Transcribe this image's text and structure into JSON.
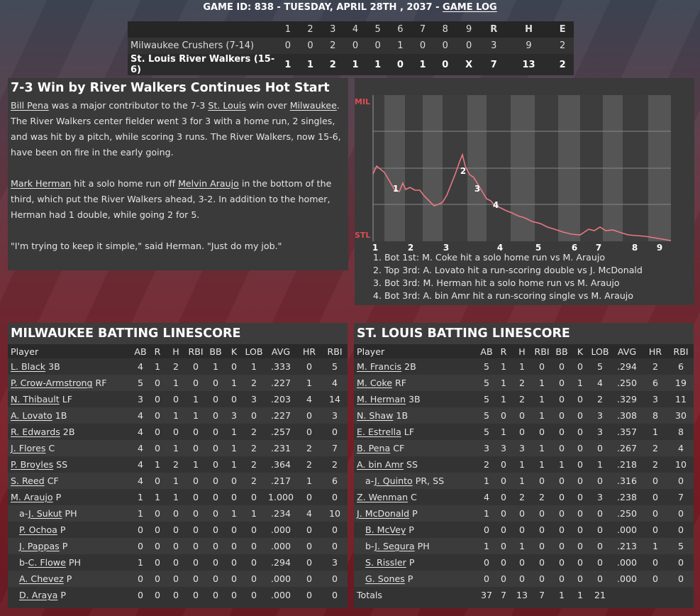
{
  "header": {
    "prefix": "GAME ID: 838 - TUESDAY, APRIL 28TH , 2037 - ",
    "link": "GAME LOG"
  },
  "linescore": {
    "innings": [
      "1",
      "2",
      "3",
      "4",
      "5",
      "6",
      "7",
      "8",
      "9",
      "R",
      "H",
      "E"
    ],
    "teams": [
      {
        "name": "Milwaukee Crushers (7-14)",
        "scores": [
          "0",
          "0",
          "2",
          "0",
          "0",
          "1",
          "0",
          "0",
          "0",
          "3",
          "9",
          "2"
        ]
      },
      {
        "name": "St. Louis River Walkers (15-6)",
        "scores": [
          "1",
          "1",
          "2",
          "1",
          "1",
          "0",
          "1",
          "0",
          "X",
          "7",
          "13",
          "2"
        ]
      }
    ]
  },
  "story": {
    "headline": "7-3 Win by River Walkers Continues Hot Start",
    "p1": {
      "a": "Bill Pena",
      "b": " was a major contributor to the 7-3 ",
      "c": "St. Louis",
      "d": " win over ",
      "e": "Milwaukee",
      "f": ". The River Walkers center fielder went 3 for 3 with a home run, 2 singles, and was hit by a pitch, while scoring 3 runs. The River Walkers, now 15-6, have been on fire in the early going."
    },
    "p2": {
      "a": "Mark Herman",
      "b": " hit a solo home run off ",
      "c": "Melvin Araujo",
      "d": " in the bottom of the third, which put the River Walkers ahead, 3-2. In addition to the homer, Herman had 1 double, while going 2 for 5."
    },
    "p3": "\"I'm trying to keep it simple,\" said Herman. \"Just do my job.\""
  },
  "win_prob": {
    "top_label": "MIL",
    "bottom_label": "STL",
    "innings": [
      "1",
      "2",
      "3",
      "4",
      "5",
      "6",
      "7",
      "8",
      "9"
    ],
    "events": [
      "1",
      "2",
      "3",
      "4"
    ],
    "notes": [
      "1. Bot 1st: M. Coke hit a solo home run vs M. Araujo",
      "2. Top 3rd: A. Lovato hit a run-scoring double vs J. McDonald",
      "3. Bot 3rd: M. Herman hit a solo home run vs M. Araujo",
      "4. Bot 3rd: A. bin Amr hit a run-scoring single vs M. Araujo"
    ]
  },
  "mil": {
    "title": "MILWAUKEE BATTING LINESCORE",
    "cols": [
      "Player",
      "AB",
      "R",
      "H",
      "RBI",
      "BB",
      "K",
      "LOB",
      "AVG",
      "HR",
      "RBI"
    ],
    "rows": [
      {
        "pre": "",
        "name": "L. Black",
        "pos": " 3B",
        "sub": false,
        "s": [
          "4",
          "1",
          "2",
          "0",
          "1",
          "0",
          "1",
          ".333",
          "0",
          "5"
        ]
      },
      {
        "pre": "",
        "name": "P. Crow-Armstrong",
        "pos": " RF",
        "sub": false,
        "s": [
          "5",
          "0",
          "1",
          "0",
          "0",
          "1",
          "2",
          ".227",
          "1",
          "4"
        ]
      },
      {
        "pre": "",
        "name": "N. Thibault",
        "pos": " LF",
        "sub": false,
        "s": [
          "3",
          "0",
          "0",
          "1",
          "0",
          "0",
          "3",
          ".203",
          "4",
          "14"
        ]
      },
      {
        "pre": "",
        "name": "A. Lovato",
        "pos": " 1B",
        "sub": false,
        "s": [
          "4",
          "0",
          "1",
          "1",
          "0",
          "3",
          "0",
          ".227",
          "0",
          "3"
        ]
      },
      {
        "pre": "",
        "name": "R. Edwards",
        "pos": " 2B",
        "sub": false,
        "s": [
          "4",
          "0",
          "0",
          "0",
          "0",
          "1",
          "2",
          ".257",
          "0",
          "0"
        ]
      },
      {
        "pre": "",
        "name": "J. Flores",
        "pos": " C",
        "sub": false,
        "s": [
          "4",
          "0",
          "1",
          "0",
          "0",
          "1",
          "2",
          ".231",
          "2",
          "7"
        ]
      },
      {
        "pre": "",
        "name": "P. Broyles",
        "pos": " SS",
        "sub": false,
        "s": [
          "4",
          "1",
          "2",
          "1",
          "0",
          "1",
          "2",
          ".364",
          "2",
          "2"
        ]
      },
      {
        "pre": "",
        "name": "S. Reed",
        "pos": " CF",
        "sub": false,
        "s": [
          "4",
          "0",
          "1",
          "0",
          "0",
          "0",
          "2",
          ".217",
          "1",
          "6"
        ]
      },
      {
        "pre": "",
        "name": "M. Araujo",
        "pos": " P",
        "sub": false,
        "s": [
          "1",
          "1",
          "1",
          "0",
          "0",
          "0",
          "0",
          "1.000",
          "0",
          "0"
        ]
      },
      {
        "pre": "a-",
        "name": "J. Sukut",
        "pos": " PH",
        "sub": true,
        "s": [
          "1",
          "0",
          "0",
          "0",
          "0",
          "1",
          "1",
          ".234",
          "4",
          "10"
        ]
      },
      {
        "pre": "",
        "name": "P. Ochoa",
        "pos": " P",
        "sub": true,
        "s": [
          "0",
          "0",
          "0",
          "0",
          "0",
          "0",
          "0",
          ".000",
          "0",
          "0"
        ]
      },
      {
        "pre": "",
        "name": "J. Pappas",
        "pos": " P",
        "sub": true,
        "s": [
          "0",
          "0",
          "0",
          "0",
          "0",
          "0",
          "0",
          ".000",
          "0",
          "0"
        ]
      },
      {
        "pre": "b-",
        "name": "C. Flowe",
        "pos": " PH",
        "sub": true,
        "s": [
          "1",
          "0",
          "0",
          "0",
          "0",
          "0",
          "0",
          ".294",
          "0",
          "3"
        ]
      },
      {
        "pre": "",
        "name": "A. Chevez",
        "pos": " P",
        "sub": true,
        "s": [
          "0",
          "0",
          "0",
          "0",
          "0",
          "0",
          "0",
          ".000",
          "0",
          "0"
        ]
      },
      {
        "pre": "",
        "name": "D. Araya",
        "pos": " P",
        "sub": true,
        "s": [
          "0",
          "0",
          "0",
          "0",
          "0",
          "0",
          "0",
          ".000",
          "0",
          "0"
        ]
      }
    ]
  },
  "stl": {
    "title": "ST. LOUIS BATTING LINESCORE",
    "cols": [
      "Player",
      "AB",
      "R",
      "H",
      "RBI",
      "BB",
      "K",
      "LOB",
      "AVG",
      "HR",
      "RBI"
    ],
    "rows": [
      {
        "pre": "",
        "name": "M. Francis",
        "pos": " 2B",
        "sub": false,
        "s": [
          "5",
          "1",
          "1",
          "0",
          "0",
          "0",
          "5",
          ".294",
          "2",
          "6"
        ]
      },
      {
        "pre": "",
        "name": "M. Coke",
        "pos": " RF",
        "sub": false,
        "s": [
          "5",
          "1",
          "2",
          "1",
          "0",
          "1",
          "4",
          ".250",
          "6",
          "19"
        ]
      },
      {
        "pre": "",
        "name": "M. Herman",
        "pos": " 3B",
        "sub": false,
        "s": [
          "5",
          "1",
          "2",
          "1",
          "0",
          "0",
          "2",
          ".329",
          "3",
          "11"
        ]
      },
      {
        "pre": "",
        "name": "N. Shaw",
        "pos": " 1B",
        "sub": false,
        "s": [
          "5",
          "0",
          "0",
          "1",
          "0",
          "0",
          "3",
          ".308",
          "8",
          "30"
        ]
      },
      {
        "pre": "",
        "name": "E. Estrella",
        "pos": " LF",
        "sub": false,
        "s": [
          "5",
          "1",
          "0",
          "0",
          "0",
          "0",
          "3",
          ".357",
          "1",
          "8"
        ]
      },
      {
        "pre": "",
        "name": "B. Pena",
        "pos": " CF",
        "sub": false,
        "s": [
          "3",
          "3",
          "3",
          "1",
          "0",
          "0",
          "0",
          ".267",
          "2",
          "4"
        ]
      },
      {
        "pre": "",
        "name": "A. bin Amr",
        "pos": " SS",
        "sub": false,
        "s": [
          "2",
          "0",
          "1",
          "1",
          "1",
          "0",
          "1",
          ".218",
          "2",
          "10"
        ]
      },
      {
        "pre": "a-",
        "name": "J. Quinto",
        "pos": " PR, SS",
        "sub": true,
        "s": [
          "1",
          "0",
          "1",
          "0",
          "0",
          "0",
          "0",
          ".316",
          "0",
          "0"
        ]
      },
      {
        "pre": "",
        "name": "Z. Wenman",
        "pos": " C",
        "sub": false,
        "s": [
          "4",
          "0",
          "2",
          "2",
          "0",
          "0",
          "3",
          ".238",
          "0",
          "7"
        ]
      },
      {
        "pre": "",
        "name": "J. McDonald",
        "pos": " P",
        "sub": false,
        "s": [
          "1",
          "0",
          "0",
          "0",
          "0",
          "0",
          "0",
          ".250",
          "0",
          "0"
        ]
      },
      {
        "pre": "",
        "name": "B. McVey",
        "pos": " P",
        "sub": true,
        "s": [
          "0",
          "0",
          "0",
          "0",
          "0",
          "0",
          "0",
          ".000",
          "0",
          "0"
        ]
      },
      {
        "pre": "b-",
        "name": "J. Segura",
        "pos": " PH",
        "sub": true,
        "s": [
          "1",
          "0",
          "1",
          "0",
          "0",
          "0",
          "0",
          ".213",
          "1",
          "5"
        ]
      },
      {
        "pre": "",
        "name": "S. Rissler",
        "pos": " P",
        "sub": true,
        "s": [
          "0",
          "0",
          "0",
          "0",
          "0",
          "0",
          "0",
          ".000",
          "0",
          "0"
        ]
      },
      {
        "pre": "",
        "name": "G. Sones",
        "pos": " P",
        "sub": true,
        "s": [
          "0",
          "0",
          "0",
          "0",
          "0",
          "0",
          "0",
          ".000",
          "0",
          "0"
        ]
      }
    ],
    "totals": {
      "label": "Totals",
      "s": [
        "37",
        "7",
        "13",
        "7",
        "1",
        "1",
        "21",
        "",
        "",
        ""
      ]
    }
  }
}
